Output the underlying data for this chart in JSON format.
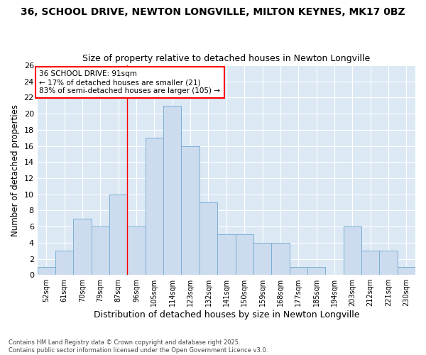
{
  "title1": "36, SCHOOL DRIVE, NEWTON LONGVILLE, MILTON KEYNES, MK17 0BZ",
  "title2": "Size of property relative to detached houses in Newton Longville",
  "xlabel": "Distribution of detached houses by size in Newton Longville",
  "ylabel": "Number of detached properties",
  "footer": "Contains HM Land Registry data © Crown copyright and database right 2025.\nContains public sector information licensed under the Open Government Licence v3.0.",
  "categories": [
    "52sqm",
    "61sqm",
    "70sqm",
    "79sqm",
    "87sqm",
    "96sqm",
    "105sqm",
    "114sqm",
    "123sqm",
    "132sqm",
    "141sqm",
    "150sqm",
    "159sqm",
    "168sqm",
    "177sqm",
    "185sqm",
    "194sqm",
    "203sqm",
    "212sqm",
    "221sqm",
    "230sqm"
  ],
  "values": [
    1,
    3,
    7,
    6,
    10,
    6,
    17,
    21,
    16,
    9,
    5,
    5,
    4,
    4,
    1,
    1,
    0,
    6,
    3,
    3,
    1
  ],
  "bar_color": "#ccdcee",
  "bar_edge_color": "#7aafd4",
  "red_line_x": 4.5,
  "annotation_title": "36 SCHOOL DRIVE: 91sqm",
  "annotation_line1": "← 17% of detached houses are smaller (21)",
  "annotation_line2": "83% of semi-detached houses are larger (105) →",
  "ylim": [
    0,
    26
  ],
  "yticks": [
    0,
    2,
    4,
    6,
    8,
    10,
    12,
    14,
    16,
    18,
    20,
    22,
    24,
    26
  ],
  "fig_bg_color": "#ffffff",
  "plot_bg_color": "#dce9f5",
  "grid_color": "#ffffff",
  "title1_fontsize": 10,
  "title2_fontsize": 9,
  "xlabel_fontsize": 9,
  "ylabel_fontsize": 8.5
}
